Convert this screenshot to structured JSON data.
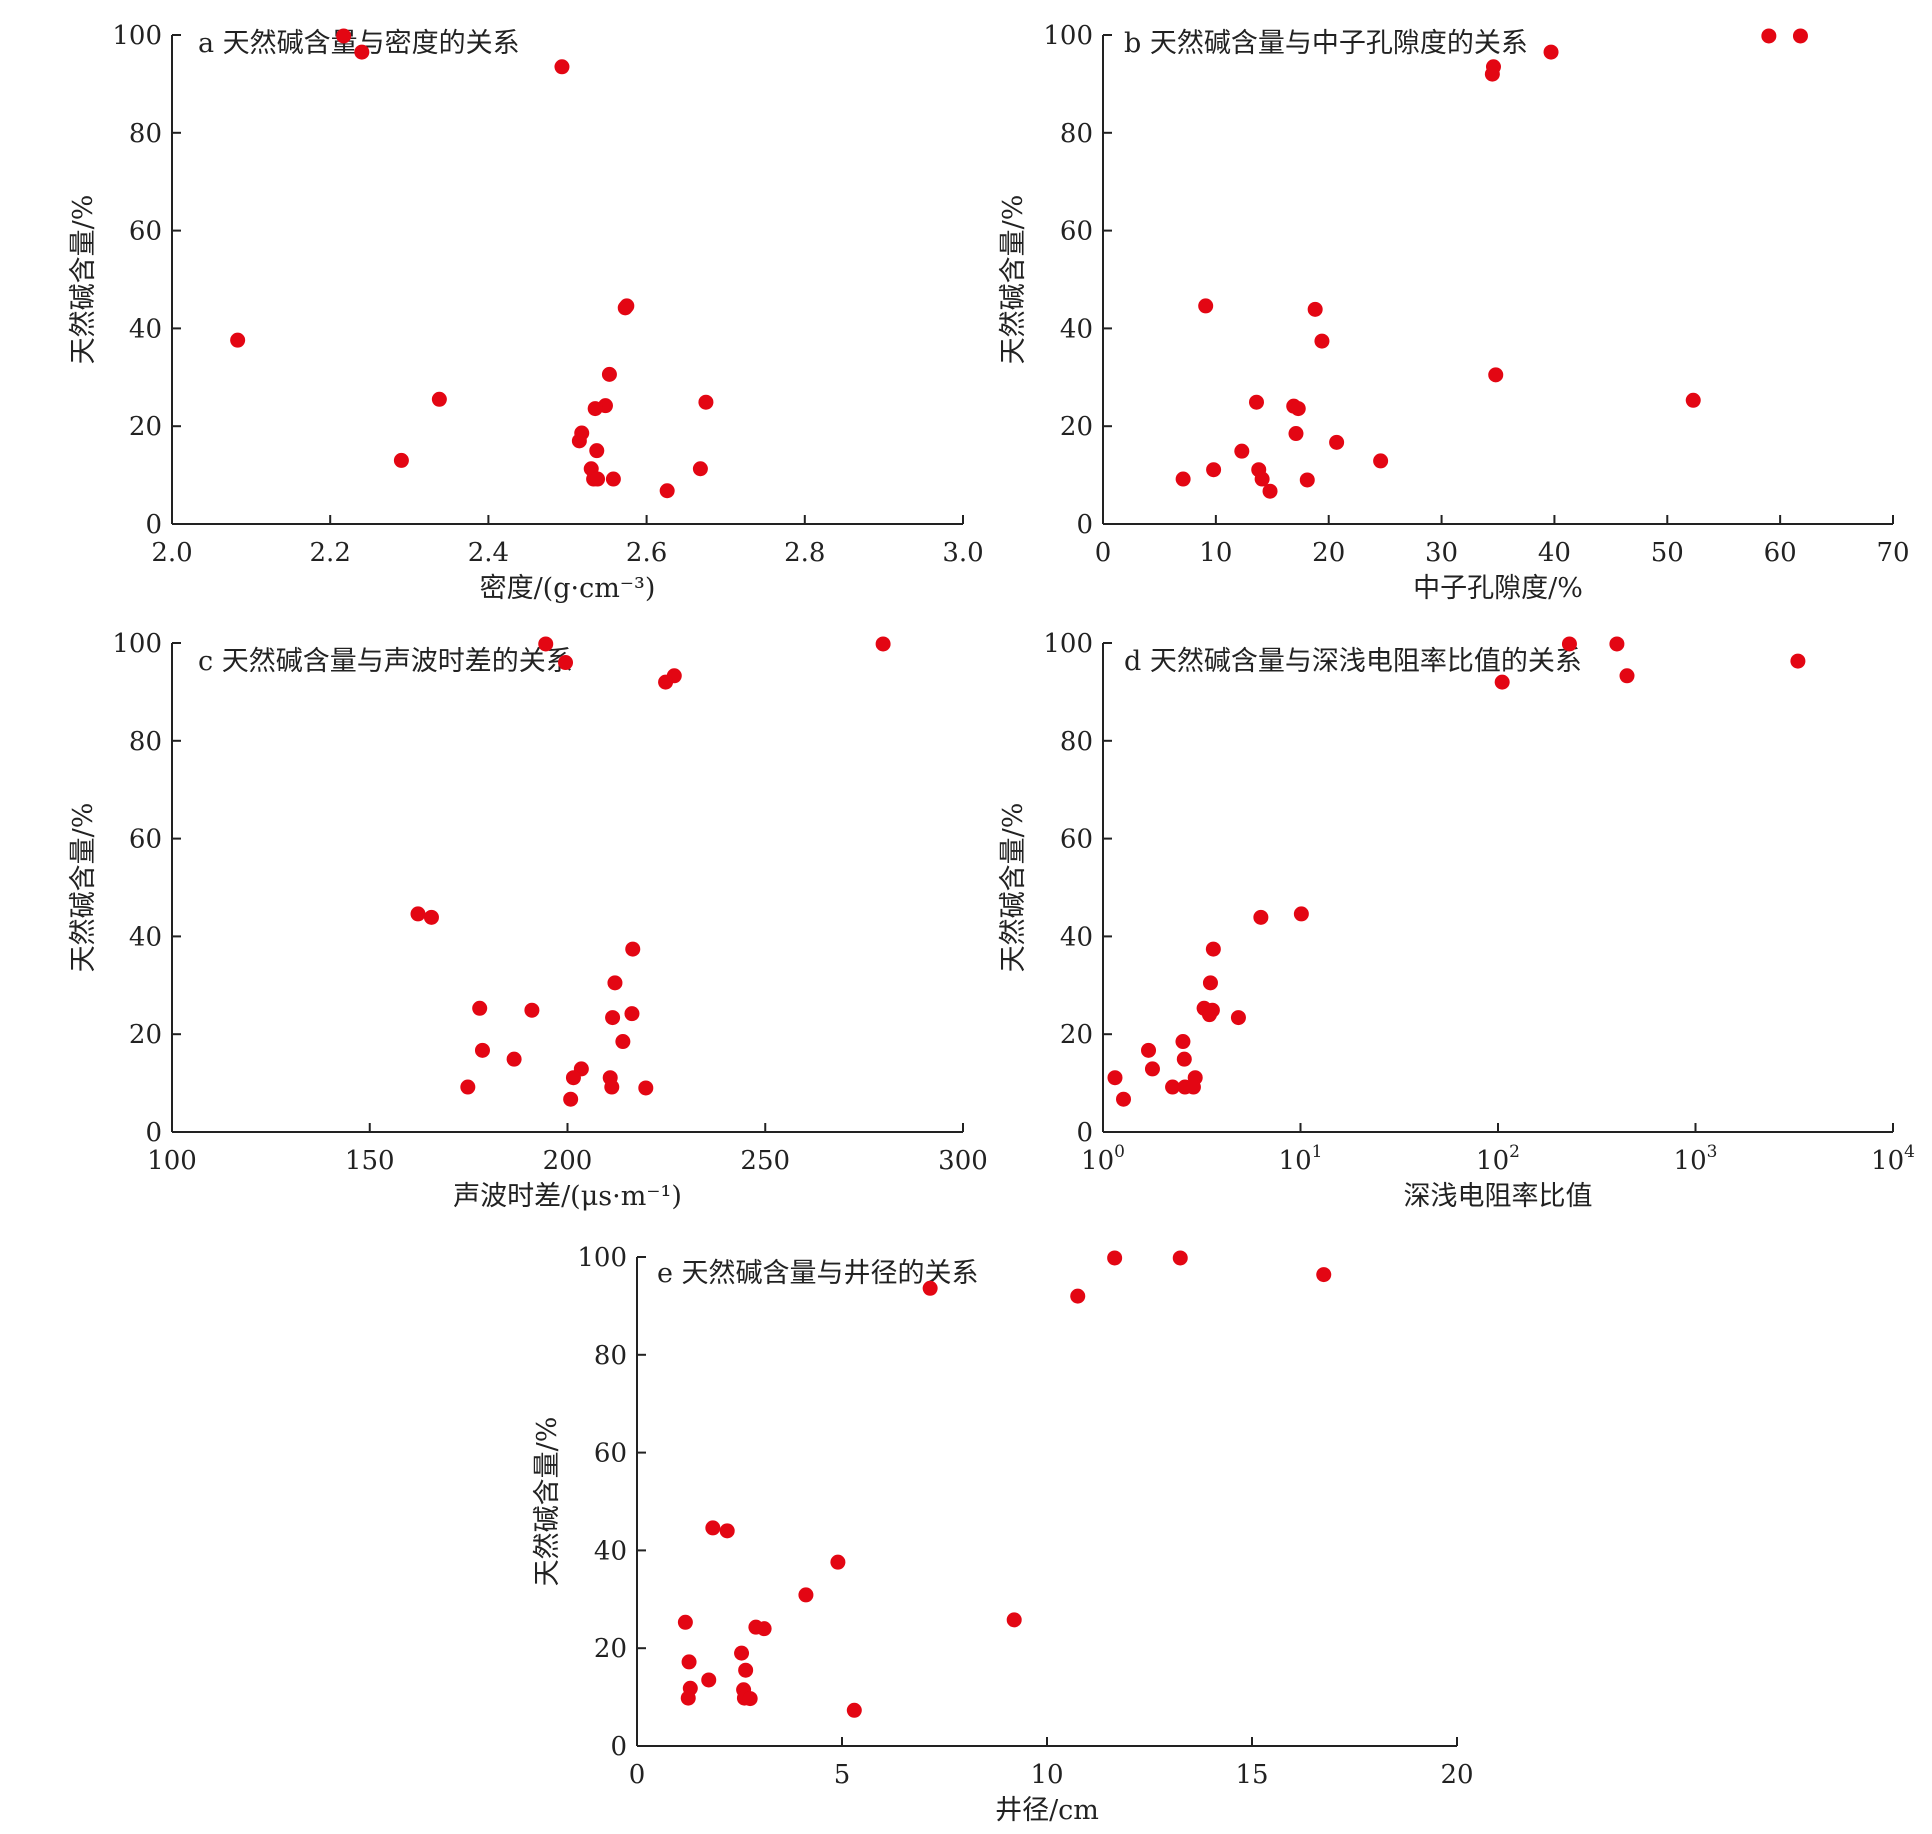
{
  "chart_data": [
    {
      "type": "scatter",
      "panel_title": "a 天然碱含量与密度的关系",
      "xlabel": "密度/(g·cm⁻³)",
      "ylabel": "天然碱含量/%",
      "xlim": [
        2.0,
        3.0
      ],
      "ylim": [
        0,
        100
      ],
      "x_scale": "linear",
      "xticks": [
        2.0,
        2.2,
        2.4,
        2.6,
        2.8,
        3.0
      ],
      "xtick_labels": [
        "2.0",
        "2.2",
        "2.4",
        "2.6",
        "2.8",
        "3.0"
      ],
      "yticks": [
        0,
        20,
        40,
        60,
        80,
        100
      ],
      "ytick_labels": [
        "0",
        "20",
        "40",
        "60",
        "80",
        "100"
      ],
      "marker_color": "#e30613",
      "points": [
        [
          2.217,
          99.8
        ],
        [
          2.24,
          96.5
        ],
        [
          2.493,
          93.5
        ],
        [
          2.083,
          37.6
        ],
        [
          2.573,
          44.2
        ],
        [
          2.575,
          44.6
        ],
        [
          2.553,
          30.6
        ],
        [
          2.338,
          25.5
        ],
        [
          2.548,
          24.2
        ],
        [
          2.535,
          23.6
        ],
        [
          2.675,
          24.9
        ],
        [
          2.518,
          18.6
        ],
        [
          2.515,
          17.0
        ],
        [
          2.537,
          15.0
        ],
        [
          2.29,
          13.0
        ],
        [
          2.53,
          11.3
        ],
        [
          2.668,
          11.3
        ],
        [
          2.533,
          9.2
        ],
        [
          2.538,
          9.2
        ],
        [
          2.558,
          9.2
        ],
        [
          2.626,
          6.8
        ]
      ]
    },
    {
      "type": "scatter",
      "panel_title": "b 天然碱含量与中子孔隙度的关系",
      "xlabel": "中子孔隙度/%",
      "ylabel": "天然碱含量/%",
      "xlim": [
        0,
        70
      ],
      "ylim": [
        0,
        100
      ],
      "x_scale": "linear",
      "xticks": [
        0,
        10,
        20,
        30,
        40,
        50,
        60,
        70
      ],
      "xtick_labels": [
        "0",
        "10",
        "20",
        "30",
        "40",
        "50",
        "60",
        "70"
      ],
      "yticks": [
        0,
        20,
        40,
        60,
        80,
        100
      ],
      "ytick_labels": [
        "0",
        "20",
        "40",
        "60",
        "80",
        "100"
      ],
      "marker_color": "#e30613",
      "points": [
        [
          34.6,
          93.5
        ],
        [
          34.5,
          92.0
        ],
        [
          39.7,
          96.5
        ],
        [
          59.0,
          99.8
        ],
        [
          61.8,
          99.8
        ],
        [
          9.1,
          44.6
        ],
        [
          18.8,
          43.9
        ],
        [
          19.4,
          37.4
        ],
        [
          34.8,
          30.5
        ],
        [
          52.3,
          25.3
        ],
        [
          13.6,
          24.9
        ],
        [
          16.9,
          24.1
        ],
        [
          17.3,
          23.6
        ],
        [
          17.1,
          18.5
        ],
        [
          20.7,
          16.7
        ],
        [
          12.3,
          14.9
        ],
        [
          24.6,
          12.9
        ],
        [
          13.8,
          11.1
        ],
        [
          9.8,
          11.1
        ],
        [
          14.1,
          9.2
        ],
        [
          7.1,
          9.2
        ],
        [
          18.1,
          9.0
        ],
        [
          14.8,
          6.7
        ]
      ]
    },
    {
      "type": "scatter",
      "panel_title": "c 天然碱含量与声波时差的关系",
      "xlabel": "声波时差/(μs·m⁻¹)",
      "ylabel": "天然碱含量/%",
      "xlim": [
        100,
        300
      ],
      "ylim": [
        0,
        100
      ],
      "x_scale": "linear",
      "xticks": [
        100,
        150,
        200,
        250,
        300
      ],
      "xtick_labels": [
        "100",
        "150",
        "200",
        "250",
        "300"
      ],
      "yticks": [
        0,
        20,
        40,
        60,
        80,
        100
      ],
      "ytick_labels": [
        "0",
        "20",
        "40",
        "60",
        "80",
        "100"
      ],
      "marker_color": "#e30613",
      "points": [
        [
          194.5,
          99.8
        ],
        [
          199.5,
          96.0
        ],
        [
          227.0,
          93.3
        ],
        [
          224.8,
          92.0
        ],
        [
          279.8,
          99.8
        ],
        [
          162.2,
          44.6
        ],
        [
          165.6,
          43.9
        ],
        [
          216.5,
          37.4
        ],
        [
          212.0,
          30.5
        ],
        [
          177.8,
          25.3
        ],
        [
          191.0,
          24.9
        ],
        [
          216.3,
          24.2
        ],
        [
          211.4,
          23.4
        ],
        [
          214.0,
          18.5
        ],
        [
          178.5,
          16.7
        ],
        [
          186.5,
          14.9
        ],
        [
          203.5,
          12.9
        ],
        [
          201.5,
          11.1
        ],
        [
          210.8,
          11.1
        ],
        [
          174.8,
          9.2
        ],
        [
          211.2,
          9.2
        ],
        [
          219.8,
          9.0
        ],
        [
          200.8,
          6.7
        ]
      ]
    },
    {
      "type": "scatter",
      "panel_title": "d 天然碱含量与深浅电阻率比值的关系",
      "xlabel": "深浅电阻率比值",
      "ylabel": "天然碱含量/%",
      "xlim": [
        1,
        10000
      ],
      "ylim": [
        0,
        100
      ],
      "x_scale": "log",
      "xticks": [
        1,
        10,
        100,
        1000,
        10000
      ],
      "xtick_labels": [
        {
          "base": "10",
          "exp": "0"
        },
        {
          "base": "10",
          "exp": "1"
        },
        {
          "base": "10",
          "exp": "2"
        },
        {
          "base": "10",
          "exp": "3"
        },
        {
          "base": "10",
          "exp": "4"
        }
      ],
      "yticks": [
        0,
        20,
        40,
        60,
        80,
        100
      ],
      "ytick_labels": [
        "0",
        "20",
        "40",
        "60",
        "80",
        "100"
      ],
      "marker_color": "#e30613",
      "points": [
        [
          230,
          99.8
        ],
        [
          400,
          99.8
        ],
        [
          105,
          92.0
        ],
        [
          450,
          93.3
        ],
        [
          3300,
          96.3
        ],
        [
          10.1,
          44.6
        ],
        [
          6.3,
          43.9
        ],
        [
          3.62,
          37.4
        ],
        [
          3.5,
          30.5
        ],
        [
          3.25,
          25.3
        ],
        [
          3.58,
          24.9
        ],
        [
          3.46,
          24.0
        ],
        [
          4.85,
          23.4
        ],
        [
          2.54,
          18.5
        ],
        [
          1.7,
          16.7
        ],
        [
          2.58,
          14.9
        ],
        [
          1.78,
          12.9
        ],
        [
          2.93,
          11.1
        ],
        [
          1.15,
          11.1
        ],
        [
          2.25,
          9.2
        ],
        [
          2.6,
          9.2
        ],
        [
          2.87,
          9.2
        ],
        [
          1.27,
          6.7
        ]
      ]
    },
    {
      "type": "scatter",
      "panel_title": "e 天然碱含量与井径的关系",
      "xlabel": "井径/cm",
      "ylabel": "天然碱含量/%",
      "xlim": [
        0,
        20
      ],
      "ylim": [
        0,
        100
      ],
      "x_scale": "linear",
      "xticks": [
        0,
        5,
        10,
        15,
        20
      ],
      "xtick_labels": [
        "0",
        "5",
        "10",
        "15",
        "20"
      ],
      "yticks": [
        0,
        20,
        40,
        60,
        80,
        100
      ],
      "ytick_labels": [
        "0",
        "20",
        "40",
        "60",
        "80",
        "100"
      ],
      "marker_color": "#e30613",
      "points": [
        [
          7.15,
          93.6
        ],
        [
          10.75,
          92.0
        ],
        [
          11.65,
          99.8
        ],
        [
          13.25,
          99.8
        ],
        [
          16.75,
          96.4
        ],
        [
          1.85,
          44.6
        ],
        [
          2.2,
          44.0
        ],
        [
          4.9,
          37.6
        ],
        [
          4.12,
          30.9
        ],
        [
          9.2,
          25.8
        ],
        [
          1.18,
          25.3
        ],
        [
          2.9,
          24.3
        ],
        [
          3.1,
          24.0
        ],
        [
          2.55,
          19.0
        ],
        [
          1.27,
          17.2
        ],
        [
          2.65,
          15.5
        ],
        [
          1.75,
          13.5
        ],
        [
          1.3,
          11.8
        ],
        [
          2.6,
          11.5
        ],
        [
          1.25,
          9.8
        ],
        [
          2.62,
          9.8
        ],
        [
          2.76,
          9.7
        ],
        [
          5.3,
          7.3
        ]
      ]
    }
  ]
}
